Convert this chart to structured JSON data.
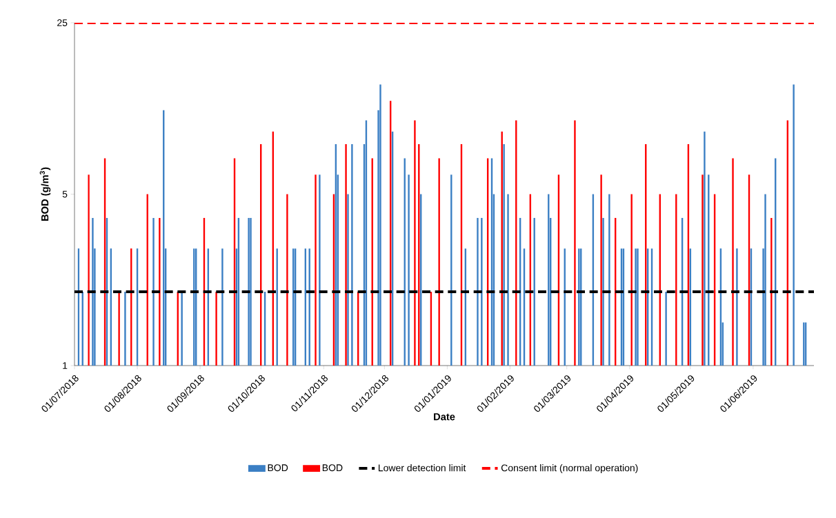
{
  "chart_data": {
    "type": "bar",
    "xlabel": "Date",
    "ylabel": "BOD (g/m$^{3}$)",
    "log": "y",
    "legend": "bottom",
    "grid": false,
    "xlim": [
      "2018-07-01",
      "2019-07-01"
    ],
    "xticks": [
      {
        "value": "2018-07-01",
        "label": "01/07/2018"
      },
      {
        "value": "2018-08-01",
        "label": "01/08/2018"
      },
      {
        "value": "2018-09-01",
        "label": "01/09/2018"
      },
      {
        "value": "2018-10-01",
        "label": "01/10/2018"
      },
      {
        "value": "2018-11-01",
        "label": "01/11/2018"
      },
      {
        "value": "2018-12-01",
        "label": "01/12/2018"
      },
      {
        "value": "2019-01-01",
        "label": "01/01/2019"
      },
      {
        "value": "2019-02-01",
        "label": "01/02/2019"
      },
      {
        "value": "2019-03-01",
        "label": "01/03/2019"
      },
      {
        "value": "2019-04-01",
        "label": "01/04/2019"
      },
      {
        "value": "2019-05-01",
        "label": "01/05/2019"
      },
      {
        "value": "2019-06-01",
        "label": "01/06/2019"
      }
    ],
    "ylim": [
      1,
      25
    ],
    "yticks": [
      1,
      5,
      25
    ],
    "series": [
      {
        "name": "BOD",
        "color": "#3b7fc4",
        "x": [
          "2018-07-03",
          "2018-07-05",
          "2018-07-10",
          "2018-07-11",
          "2018-07-17",
          "2018-07-19",
          "2018-07-26",
          "2018-08-01",
          "2018-08-09",
          "2018-08-14",
          "2018-08-15",
          "2018-08-23",
          "2018-08-29",
          "2018-08-30",
          "2018-09-05",
          "2018-09-12",
          "2018-09-19",
          "2018-09-20",
          "2018-09-25",
          "2018-09-26",
          "2018-10-03",
          "2018-10-09",
          "2018-10-17",
          "2018-10-18",
          "2018-10-23",
          "2018-10-25",
          "2018-10-30",
          "2018-11-07",
          "2018-11-08",
          "2018-11-13",
          "2018-11-15",
          "2018-11-21",
          "2018-11-22",
          "2018-11-28",
          "2018-11-29",
          "2018-12-05",
          "2018-12-11",
          "2018-12-13",
          "2018-12-19",
          "2019-01-03",
          "2019-01-10",
          "2019-01-16",
          "2019-01-18",
          "2019-01-23",
          "2019-01-24",
          "2019-01-29",
          "2019-01-31",
          "2019-02-06",
          "2019-02-08",
          "2019-02-13",
          "2019-02-20",
          "2019-02-21",
          "2019-02-28",
          "2019-03-07",
          "2019-03-08",
          "2019-03-14",
          "2019-03-19",
          "2019-03-22",
          "2019-03-28",
          "2019-03-29",
          "2019-04-04",
          "2019-04-05",
          "2019-04-10",
          "2019-04-12",
          "2019-04-19",
          "2019-04-27",
          "2019-05-01",
          "2019-05-08",
          "2019-05-10",
          "2019-05-16",
          "2019-05-17",
          "2019-05-24",
          "2019-05-31",
          "2019-06-06",
          "2019-06-07",
          "2019-06-12",
          "2019-06-21",
          "2019-06-26",
          "2019-06-27"
        ],
        "values": [
          3,
          2,
          4,
          3,
          4,
          3,
          2,
          3,
          4,
          11,
          3,
          2,
          3,
          3,
          3,
          3,
          3,
          4,
          4,
          4,
          2,
          3,
          3,
          3,
          3,
          3,
          6,
          8,
          6,
          5,
          8,
          8,
          10,
          11,
          14,
          9,
          7,
          6,
          5,
          6,
          3,
          4,
          4,
          7,
          5,
          8,
          5,
          4,
          3,
          4,
          5,
          4,
          3,
          3,
          3,
          5,
          4,
          5,
          3,
          3,
          3,
          3,
          3,
          3,
          2,
          4,
          3,
          9,
          6,
          3,
          1.5,
          3,
          3,
          3,
          5,
          7,
          14,
          1.5,
          1.5
        ]
      },
      {
        "name": "BOD",
        "color": "#ff0000",
        "x": [
          "2018-07-08",
          "2018-07-16",
          "2018-07-23",
          "2018-07-29",
          "2018-08-06",
          "2018-08-12",
          "2018-08-21",
          "2018-09-03",
          "2018-09-09",
          "2018-09-18",
          "2018-10-01",
          "2018-10-07",
          "2018-10-14",
          "2018-10-28",
          "2018-11-06",
          "2018-11-12",
          "2018-11-18",
          "2018-11-25",
          "2018-12-04",
          "2018-12-16",
          "2018-12-18",
          "2018-12-24",
          "2018-12-28",
          "2019-01-08",
          "2019-01-21",
          "2019-01-28",
          "2019-02-04",
          "2019-02-11",
          "2019-02-25",
          "2019-03-05",
          "2019-03-18",
          "2019-03-25",
          "2019-04-02",
          "2019-04-09",
          "2019-04-16",
          "2019-04-24",
          "2019-04-30",
          "2019-05-07",
          "2019-05-13",
          "2019-05-22",
          "2019-05-30",
          "2019-06-10",
          "2019-06-18"
        ],
        "values": [
          6,
          7,
          2,
          3,
          5,
          4,
          2,
          4,
          2,
          7,
          8,
          9,
          5,
          6,
          5,
          8,
          2,
          7,
          12,
          10,
          8,
          2,
          7,
          8,
          7,
          9,
          10,
          5,
          6,
          10,
          6,
          4,
          5,
          8,
          5,
          5,
          8,
          6,
          5,
          7,
          6,
          4,
          10
        ]
      }
    ],
    "ref_lines": [
      {
        "axis": "y",
        "value": 2,
        "label": "Lower detection limit",
        "color": "#000000",
        "line_style": "dashed"
      },
      {
        "axis": "y",
        "value": 25,
        "label": "Consent limit (normal operation)",
        "color": "#ff0000",
        "line_style": "dashed"
      }
    ]
  }
}
